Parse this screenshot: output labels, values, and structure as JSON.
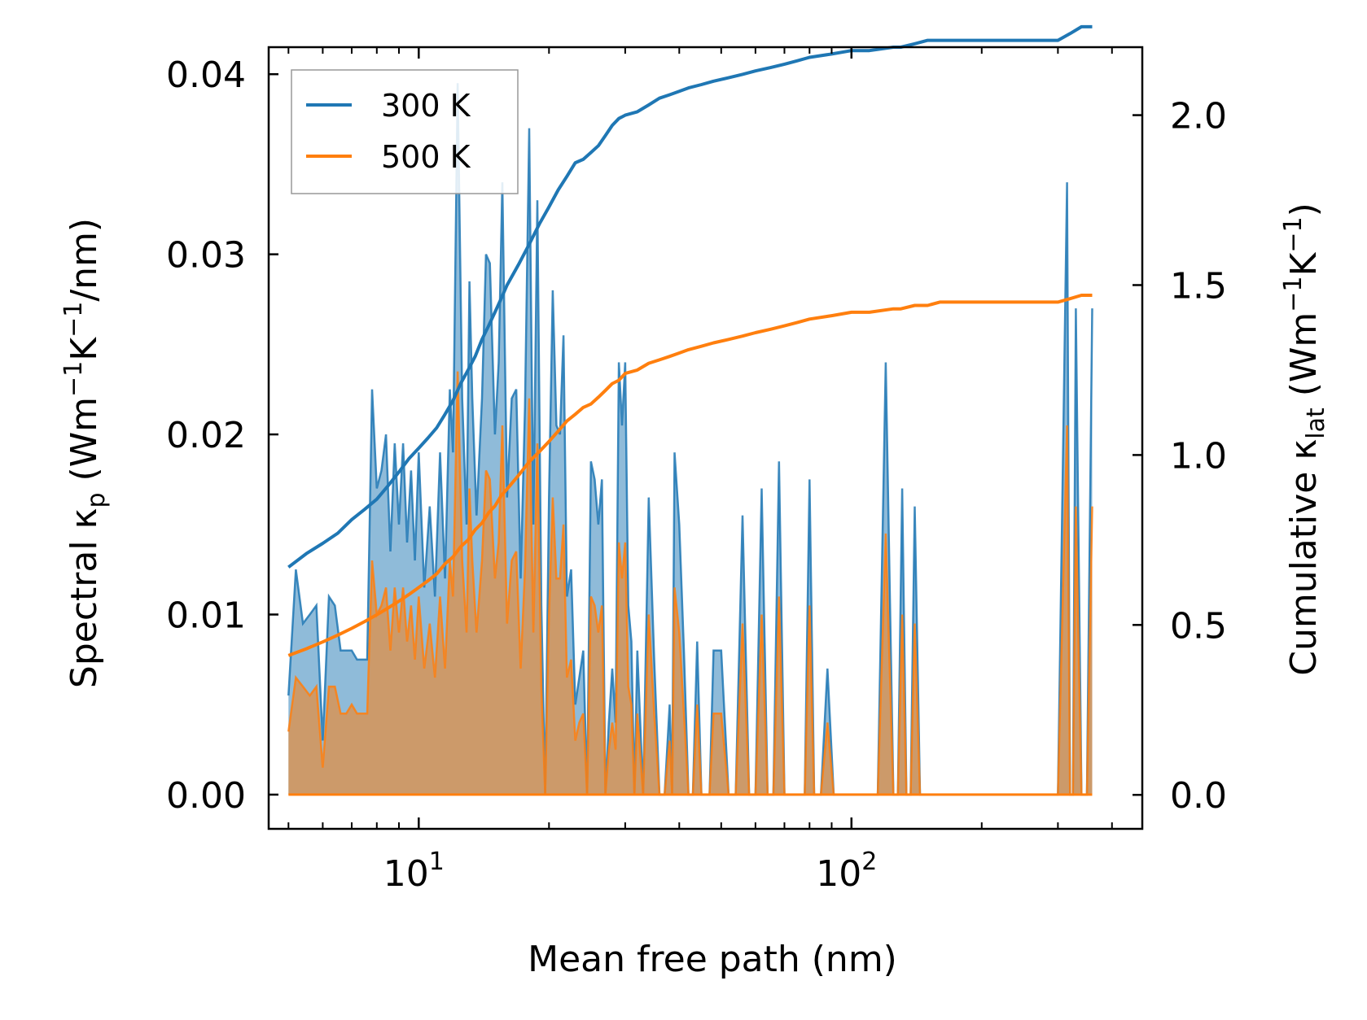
{
  "chart_data": {
    "type": "area",
    "title": "",
    "xlabel": "Mean free path (nm)",
    "ylabel_left": {
      "text": "Spectral κ",
      "sub": "p",
      "unit_before": " (Wm",
      "sup1": "−1",
      "mid": "K",
      "sup2": "−1",
      "unit_after": "/nm)"
    },
    "ylabel_right": {
      "text": "Cumulative κ",
      "sub": "lat",
      "unit_before": " (Wm",
      "sup1": "−1",
      "mid": "K",
      "sup2": "−1",
      "unit_after": ")"
    },
    "xscale": "log",
    "xlim": [
      4.5,
      470
    ],
    "ylim_left": [
      -0.0019,
      0.0415
    ],
    "ylim_right": [
      -0.1,
      2.2
    ],
    "x_ticks": [
      {
        "base": "10",
        "exp": "1",
        "value": 10
      },
      {
        "base": "10",
        "exp": "2",
        "value": 100
      }
    ],
    "y_ticks_left": [
      "0.00",
      "0.01",
      "0.02",
      "0.03",
      "0.04"
    ],
    "y_ticks_right": [
      "0.0",
      "0.5",
      "1.0",
      "1.5",
      "2.0"
    ],
    "legend": {
      "position": "top-left",
      "entries": [
        "300 K",
        "500 K"
      ]
    },
    "colors": {
      "s300": "#1f77b4",
      "s500": "#ff7f0e",
      "fill300": "#1f77b4",
      "fill500": "#ff7f0e"
    },
    "spectral": {
      "x": [
        5.0,
        5.2,
        5.4,
        5.6,
        5.8,
        6.0,
        6.2,
        6.4,
        6.6,
        6.8,
        7.0,
        7.2,
        7.4,
        7.6,
        7.8,
        8.0,
        8.2,
        8.4,
        8.6,
        8.8,
        9.0,
        9.2,
        9.4,
        9.6,
        9.8,
        10.0,
        10.3,
        10.6,
        10.9,
        11.2,
        11.5,
        11.8,
        12.0,
        12.3,
        12.6,
        12.9,
        13.1,
        13.3,
        13.6,
        14.0,
        14.3,
        14.6,
        15.0,
        15.3,
        15.6,
        16.0,
        16.4,
        16.8,
        17.2,
        17.6,
        18.0,
        18.4,
        18.8,
        19.2,
        19.6,
        20.0,
        20.4,
        20.8,
        21.2,
        21.6,
        22.0,
        22.5,
        23.0,
        23.5,
        24.0,
        24.5,
        25.0,
        25.5,
        26.0,
        26.5,
        27.0,
        27.5,
        28.0,
        28.5,
        29.0,
        29.5,
        30.0,
        30.5,
        31.0,
        31.5,
        32.0,
        33.0,
        34.0,
        35.0,
        36.0,
        37.0,
        38.0,
        38.5,
        39.0,
        40.0,
        41.0,
        42.0,
        43.0,
        44.0,
        45.0,
        46.0,
        47.0,
        48.0,
        50.0,
        52.0,
        54.0,
        56.0,
        58.0,
        60.0,
        62.0,
        64.0,
        66.0,
        68.0,
        70.0,
        72.0,
        74.0,
        76.0,
        78.0,
        80.0,
        82.0,
        85.0,
        88.0,
        91.0,
        94.0,
        97.0,
        100.0,
        103.0,
        106.0,
        110.0,
        115.0,
        120.0,
        125.0,
        128.0,
        131.0,
        134.0,
        137.0,
        140.0,
        144.0,
        148.0,
        152.0,
        156.0,
        160.0,
        165.0,
        170.0,
        180.0,
        200.0,
        250.0,
        300.0,
        315.0,
        320.0,
        325.0,
        330.0,
        340.0,
        350.0,
        360.0
      ],
      "s300": [
        0.0055,
        0.0125,
        0.0095,
        0.01,
        0.0105,
        0.003,
        0.011,
        0.0105,
        0.008,
        0.008,
        0.008,
        0.0075,
        0.0075,
        0.0075,
        0.0225,
        0.017,
        0.018,
        0.02,
        0.0135,
        0.0195,
        0.015,
        0.0195,
        0.014,
        0.018,
        0.013,
        0.019,
        0.0115,
        0.016,
        0.011,
        0.019,
        0.012,
        0.0225,
        0.019,
        0.0395,
        0.022,
        0.015,
        0.0285,
        0.022,
        0.0155,
        0.022,
        0.03,
        0.0295,
        0.02,
        0.024,
        0.034,
        0.0165,
        0.022,
        0.0225,
        0.012,
        0.0215,
        0.037,
        0.015,
        0.033,
        0.0105,
        0.0,
        0.0165,
        0.028,
        0.0205,
        0.02,
        0.0255,
        0.011,
        0.0125,
        0.005,
        0.0065,
        0.008,
        0.0,
        0.0185,
        0.0175,
        0.015,
        0.0175,
        0.0,
        0.004,
        0.007,
        0.004,
        0.024,
        0.0205,
        0.024,
        0.0105,
        0.0085,
        0.0,
        0.008,
        0.0,
        0.0165,
        0.0075,
        0.0,
        0.0,
        0.005,
        0.0,
        0.019,
        0.015,
        0.008,
        0.0,
        0.0,
        0.0085,
        0.0,
        0.0,
        0.0,
        0.008,
        0.008,
        0.0,
        0.0,
        0.0155,
        0.0,
        0.0,
        0.017,
        0.0,
        0.0,
        0.0185,
        0.0,
        0.0,
        0.0,
        0.0,
        0.0,
        0.0175,
        0.0,
        0.0,
        0.007,
        0.0,
        0.0,
        0.0,
        0.0,
        0.0,
        0.0,
        0.0,
        0.0,
        0.024,
        0.0,
        0.0,
        0.017,
        0.0,
        0.0,
        0.016,
        0.0,
        0.0,
        0.0,
        0.0,
        0.0,
        0.0,
        0.0,
        0.0,
        0.0,
        0.0,
        0.0,
        0.034,
        0.0,
        0.0,
        0.027,
        0.0,
        0.0,
        0.027,
        0.0
      ],
      "s500": [
        0.0035,
        0.0065,
        0.006,
        0.0055,
        0.006,
        0.0015,
        0.006,
        0.006,
        0.0045,
        0.0045,
        0.005,
        0.0045,
        0.0045,
        0.0045,
        0.013,
        0.01,
        0.0105,
        0.0115,
        0.008,
        0.0115,
        0.009,
        0.0115,
        0.0085,
        0.0105,
        0.0075,
        0.011,
        0.007,
        0.0095,
        0.0065,
        0.011,
        0.007,
        0.013,
        0.011,
        0.0235,
        0.013,
        0.009,
        0.017,
        0.013,
        0.009,
        0.013,
        0.018,
        0.0175,
        0.012,
        0.014,
        0.0205,
        0.0095,
        0.013,
        0.0135,
        0.007,
        0.0125,
        0.022,
        0.009,
        0.0195,
        0.006,
        0.0,
        0.01,
        0.0165,
        0.012,
        0.012,
        0.015,
        0.0065,
        0.0075,
        0.003,
        0.004,
        0.0045,
        0.0,
        0.011,
        0.0105,
        0.009,
        0.0105,
        0.0,
        0.0025,
        0.004,
        0.0025,
        0.014,
        0.012,
        0.014,
        0.006,
        0.005,
        0.0,
        0.0045,
        0.0,
        0.01,
        0.0045,
        0.0,
        0.0,
        0.003,
        0.0,
        0.0115,
        0.009,
        0.0045,
        0.0,
        0.0,
        0.005,
        0.0,
        0.0,
        0.0,
        0.0045,
        0.0045,
        0.0,
        0.0,
        0.0095,
        0.0,
        0.0,
        0.01,
        0.0,
        0.0,
        0.011,
        0.0,
        0.0,
        0.0,
        0.0,
        0.0,
        0.0105,
        0.0,
        0.0,
        0.004,
        0.0,
        0.0,
        0.0,
        0.0,
        0.0,
        0.0,
        0.0,
        0.0,
        0.0145,
        0.0,
        0.0,
        0.01,
        0.0,
        0.0,
        0.0095,
        0.0,
        0.0,
        0.0,
        0.0,
        0.0,
        0.0,
        0.0,
        0.0,
        0.0,
        0.0,
        0.0,
        0.0205,
        0.0,
        0.0,
        0.016,
        0.0,
        0.0,
        0.016,
        0.0
      ]
    },
    "cumulative": {
      "x": [
        5.0,
        5.5,
        6.0,
        6.5,
        7.0,
        7.5,
        8.0,
        8.5,
        9.0,
        9.5,
        10.0,
        10.5,
        11.0,
        11.5,
        12.0,
        12.5,
        13.0,
        13.5,
        14.0,
        14.5,
        15.0,
        15.5,
        16.0,
        17.0,
        18.0,
        19.0,
        20.0,
        21.0,
        22.0,
        23.0,
        24.0,
        25.0,
        26.0,
        27.0,
        28.0,
        29.0,
        30.0,
        32.0,
        34.0,
        36.0,
        38.0,
        40.0,
        42.0,
        45.0,
        48.0,
        52.0,
        56.0,
        60.0,
        65.0,
        70.0,
        75.0,
        80.0,
        90.0,
        100.0,
        110.0,
        125.0,
        130.0,
        140.0,
        150.0,
        160.0,
        200.0,
        250.0,
        300.0,
        320.0,
        340.0,
        360.0
      ],
      "c300": [
        0.67,
        0.71,
        0.74,
        0.77,
        0.81,
        0.84,
        0.87,
        0.91,
        0.95,
        0.99,
        1.02,
        1.05,
        1.08,
        1.12,
        1.16,
        1.21,
        1.25,
        1.29,
        1.34,
        1.38,
        1.42,
        1.46,
        1.5,
        1.56,
        1.62,
        1.68,
        1.73,
        1.78,
        1.82,
        1.86,
        1.87,
        1.89,
        1.91,
        1.94,
        1.97,
        1.99,
        2.0,
        2.01,
        2.03,
        2.05,
        2.06,
        2.07,
        2.08,
        2.09,
        2.1,
        2.11,
        2.12,
        2.13,
        2.14,
        2.15,
        2.16,
        2.17,
        2.18,
        2.19,
        2.19,
        2.2,
        2.2,
        2.21,
        2.22,
        2.22,
        2.22,
        2.22,
        2.22,
        2.24,
        2.26,
        2.26
      ],
      "c500": [
        0.41,
        0.43,
        0.45,
        0.47,
        0.49,
        0.51,
        0.53,
        0.55,
        0.57,
        0.59,
        0.61,
        0.63,
        0.65,
        0.68,
        0.7,
        0.73,
        0.75,
        0.78,
        0.8,
        0.83,
        0.85,
        0.88,
        0.9,
        0.94,
        0.98,
        1.01,
        1.04,
        1.07,
        1.1,
        1.12,
        1.14,
        1.15,
        1.17,
        1.19,
        1.21,
        1.22,
        1.24,
        1.25,
        1.27,
        1.28,
        1.29,
        1.3,
        1.31,
        1.32,
        1.33,
        1.34,
        1.35,
        1.36,
        1.37,
        1.38,
        1.39,
        1.4,
        1.41,
        1.42,
        1.42,
        1.43,
        1.43,
        1.44,
        1.44,
        1.45,
        1.45,
        1.45,
        1.45,
        1.46,
        1.47,
        1.47
      ]
    }
  }
}
